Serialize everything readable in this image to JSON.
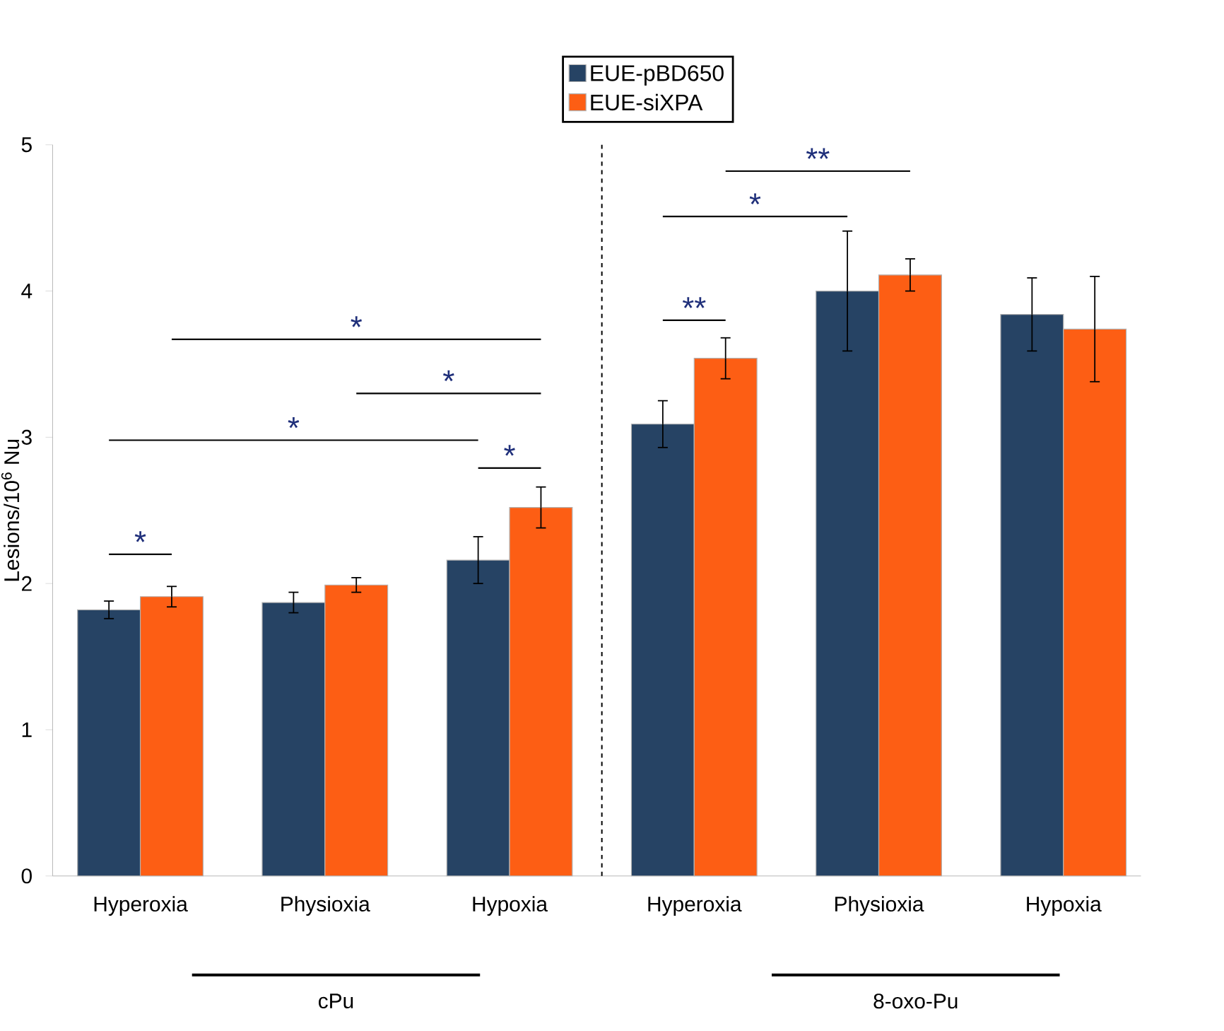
{
  "chart_data": {
    "type": "bar",
    "ylabel": "Lesions/10$^{6}$ Nu",
    "categories": [
      "Hyperoxia",
      "Physioxia",
      "Hypoxia",
      "Hyperoxia",
      "Physioxia",
      "Hypoxia"
    ],
    "series": [
      {
        "name": "EUE-pBD650",
        "color": "#264364",
        "values": [
          1.82,
          1.87,
          2.16,
          3.09,
          4.0,
          3.84
        ],
        "errors": [
          0.06,
          0.07,
          0.16,
          0.16,
          0.41,
          0.25
        ]
      },
      {
        "name": "EUE-siXPA",
        "color": "#fd5e14",
        "values": [
          1.91,
          1.99,
          2.52,
          3.54,
          4.11,
          3.74
        ],
        "errors": [
          0.07,
          0.05,
          0.14,
          0.14,
          0.11,
          0.36
        ]
      }
    ],
    "ylim": [
      0,
      5
    ],
    "yticks": [
      0,
      1,
      2,
      3,
      4,
      5
    ],
    "grid": false,
    "legend": "top",
    "annotations": [
      "*",
      "*",
      "*",
      "*",
      "*",
      "**",
      "*",
      "**",
      "cPu",
      "8-oxo-Pu"
    ]
  }
}
